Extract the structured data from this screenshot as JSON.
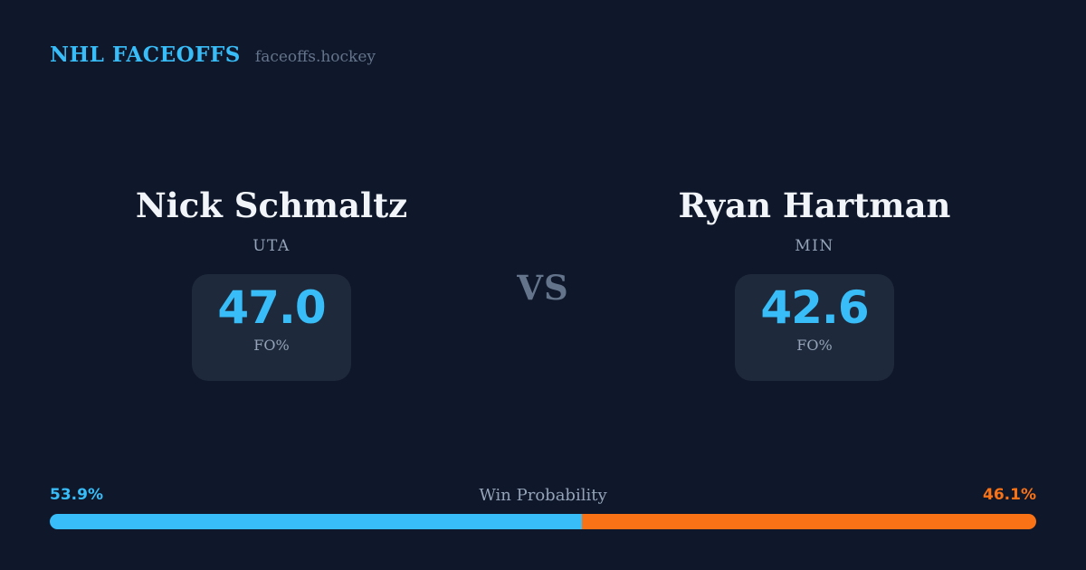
{
  "header": {
    "brand": "NHL FACEOFFS",
    "site": "faceoffs.hockey"
  },
  "vs_label": "VS",
  "players": [
    {
      "name": "Nick Schmaltz",
      "team": "UTA",
      "stat_value": "47.0",
      "stat_label": "FO%"
    },
    {
      "name": "Ryan Hartman",
      "team": "MIN",
      "stat_value": "42.6",
      "stat_label": "FO%"
    }
  ],
  "win_probability": {
    "title": "Win Probability",
    "left_pct_label": "53.9%",
    "right_pct_label": "46.1%",
    "left_value": 53.9,
    "right_value": 46.1
  },
  "colors": {
    "background": "#0f172a",
    "card": "#1e293b",
    "accent_blue": "#38bdf8",
    "accent_orange": "#f97316",
    "muted_text": "#94a3b8",
    "dim_text": "#64748b",
    "name_text": "#f1f5f9"
  }
}
